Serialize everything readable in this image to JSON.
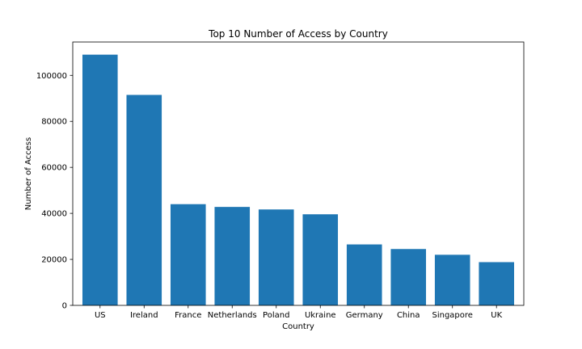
{
  "chart_data": {
    "type": "bar",
    "title": "Top 10 Number of Access by Country",
    "xlabel": "Country",
    "ylabel": "Number of Access",
    "categories": [
      "US",
      "Ireland",
      "France",
      "Netherlands",
      "Poland",
      "Ukraine",
      "Germany",
      "China",
      "Singapore",
      "UK"
    ],
    "values": [
      109000,
      91500,
      44000,
      42800,
      41700,
      39600,
      26500,
      24500,
      22000,
      18800
    ],
    "ylim": [
      0,
      114500
    ],
    "yticks": [
      0,
      20000,
      40000,
      60000,
      80000,
      100000
    ],
    "bar_color": "#1f77b4",
    "grid": false,
    "legend": "none"
  }
}
